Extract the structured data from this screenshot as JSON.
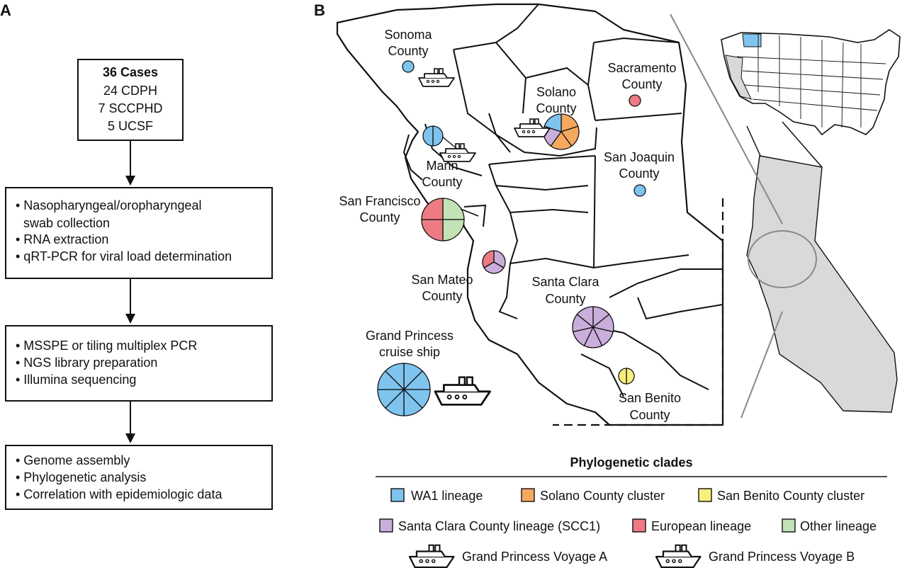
{
  "panel_a": {
    "label": "A",
    "box1": {
      "title": "36 Cases",
      "lines": [
        "24 CDPH",
        "7 SCCPHD",
        "5 UCSF"
      ]
    },
    "box2": {
      "lines": [
        "• Nasopharyngeal/oropharyngeal",
        "swab collection",
        "• RNA extraction",
        "• qRT-PCR for viral load determination"
      ]
    },
    "box3": {
      "lines": [
        "• MSSPE or tiling multiplex PCR",
        "• NGS library preparation",
        "• Illumina sequencing"
      ]
    },
    "box4": {
      "lines": [
        "• Genome assembly",
        "• Phylogenetic analysis",
        "• Correlation with epidemiologic data"
      ]
    }
  },
  "panel_b": {
    "label": "B",
    "county_labels": [
      [
        "Sonoma",
        "County"
      ],
      [
        "Sacramento",
        "County"
      ],
      [
        "Solano",
        "County"
      ],
      [
        "San Joaquin",
        "County"
      ],
      [
        "Marin",
        "County"
      ],
      [
        "San Francisco",
        "County"
      ],
      [
        "San Mateo",
        "County"
      ],
      [
        "Santa Clara",
        "County"
      ],
      [
        "San Benito",
        "County"
      ],
      [
        "Grand Princess",
        "cruise ship"
      ]
    ],
    "pies": [
      {
        "place": "Sonoma",
        "cases": {
          "WA1 lineage": 1
        }
      },
      {
        "place": "Sacramento",
        "cases": {
          "European lineage": 1
        }
      },
      {
        "place": "Solano",
        "cases": {
          "Solano County cluster": 3,
          "Santa Clara County lineage (SCC1)": 1,
          "WA1 lineage": 1
        }
      },
      {
        "place": "San Joaquin",
        "cases": {
          "WA1 lineage": 1
        }
      },
      {
        "place": "Marin",
        "cases": {
          "WA1 lineage": 2
        }
      },
      {
        "place": "San Francisco",
        "cases": {
          "Other lineage": 2,
          "European lineage": 2
        }
      },
      {
        "place": "San Mateo",
        "cases": {
          "Santa Clara County lineage (SCC1)": 2,
          "European lineage": 1
        }
      },
      {
        "place": "Santa Clara",
        "cases": {
          "Santa Clara County lineage (SCC1)": 7
        }
      },
      {
        "place": "San Benito",
        "cases": {
          "San Benito County cluster": 2
        }
      },
      {
        "place": "Grand Princess cruise ship",
        "cases": {
          "WA1 lineage": 8
        }
      }
    ]
  },
  "legend": {
    "title": "Phylogenetic clades",
    "items": [
      {
        "label": "WA1 lineage",
        "color": "#7fc4ef"
      },
      {
        "label": "Solano County cluster",
        "color": "#f5a95f"
      },
      {
        "label": "San Benito County cluster",
        "color": "#f8f07a"
      },
      {
        "label": "Santa Clara County lineage (SCC1)",
        "color": "#c9aedc"
      },
      {
        "label": "European lineage",
        "color": "#ee7a84"
      },
      {
        "label": "Other lineage",
        "color": "#c3e2b5"
      }
    ],
    "ships": [
      {
        "label": "Grand Princess Voyage A",
        "icon": "ship-voyage-a-icon"
      },
      {
        "label": "Grand Princess Voyage B",
        "icon": "ship-voyage-b-icon"
      }
    ]
  }
}
